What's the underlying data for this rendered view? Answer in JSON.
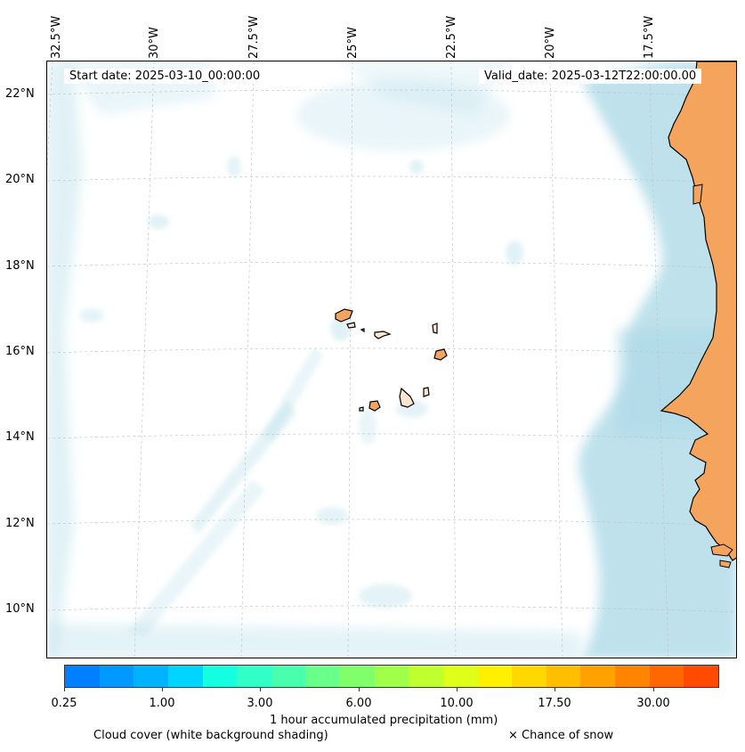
{
  "header": {
    "start_date": "Start date: 2025-03-10_00:00:00",
    "valid_date": "Valid_date: 2025-03-12T22:00:00.00"
  },
  "axes": {
    "lon_labels": [
      "32.5°W",
      "30°W",
      "27.5°W",
      "25°W",
      "22.5°W",
      "20°W",
      "17.5°W"
    ],
    "lat_labels": [
      "22°N",
      "20°N",
      "18°N",
      "16°N",
      "14°N",
      "12°N",
      "10°N"
    ]
  },
  "colorbar": {
    "tick_labels": [
      "0.25",
      "1.00",
      "3.00",
      "6.00",
      "10.00",
      "17.50",
      "30.00"
    ],
    "colors": [
      "#0080ff",
      "#0099ff",
      "#00b3ff",
      "#00d5ff",
      "#14ffe0",
      "#30ffc8",
      "#48ffae",
      "#68ff8a",
      "#80ff6a",
      "#a0ff48",
      "#c0ff30",
      "#e0ff18",
      "#fff000",
      "#ffd800",
      "#ffbf00",
      "#ffa200",
      "#ff8400",
      "#ff6800",
      "#ff4a00"
    ],
    "title": "1 hour accumulated precipitation (mm)"
  },
  "legend": {
    "cloud_cover": "Cloud cover (white background shading)",
    "snow": "× Chance of snow"
  },
  "colors": {
    "land": "#f5a45d",
    "cloud": "#a9d8e6",
    "coast": "#000000"
  }
}
